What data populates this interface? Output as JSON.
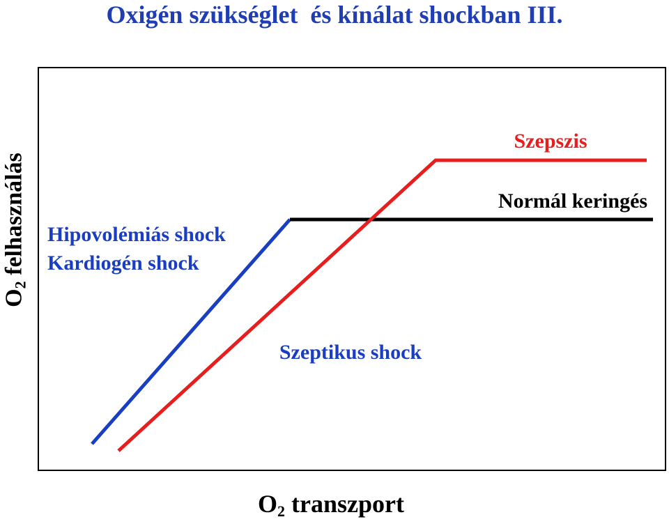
{
  "title": "Oxigén szükséglet  és kínálat shockban III.",
  "axes": {
    "y_label_prefix": "O",
    "y_label_sub": "2",
    "y_label_suffix": " felhasználás",
    "x_label_prefix": "O",
    "x_label_sub": "2",
    "x_label_suffix": " transzport"
  },
  "labels": {
    "sepsis": "Szepszis",
    "normal": "Normál keringés",
    "hypo_line1": "Hipovolémiás shock",
    "hypo_line2": "Kardiogén shock",
    "septic_shock": "Szeptikus shock"
  },
  "colors": {
    "title": "#1f3db5",
    "blue_line": "#1a3ec2",
    "red_line": "#e61e1e",
    "black_line": "#000000"
  }
}
